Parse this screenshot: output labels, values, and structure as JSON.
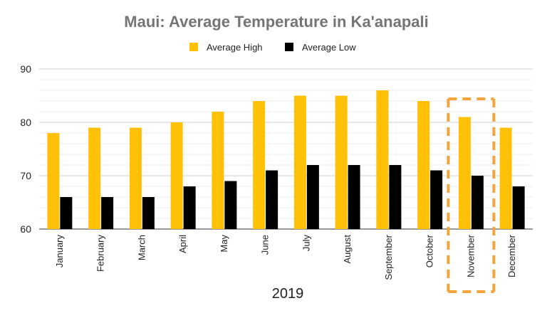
{
  "chart_data": {
    "type": "bar",
    "title": "Maui: Average Temperature in Ka'anapali",
    "xlabel": "2019",
    "ylabel": "",
    "ylim": [
      60,
      90
    ],
    "yticks": [
      60,
      70,
      80,
      90
    ],
    "grid": true,
    "legend_position": "top-center",
    "categories": [
      "January",
      "February",
      "March",
      "April",
      "May",
      "June",
      "July",
      "August",
      "September",
      "October",
      "November",
      "December"
    ],
    "series": [
      {
        "name": "Average High",
        "color": "#FFC107",
        "values": [
          78,
          79,
          79,
          80,
          82,
          84,
          85,
          85,
          86,
          84,
          81,
          79
        ]
      },
      {
        "name": "Average Low",
        "color": "#000000",
        "values": [
          66,
          66,
          66,
          68,
          69,
          71,
          72,
          72,
          72,
          71,
          70,
          68
        ]
      }
    ],
    "highlight": {
      "category": "November",
      "style": "dashed-box",
      "color": "#F5A33A"
    }
  }
}
